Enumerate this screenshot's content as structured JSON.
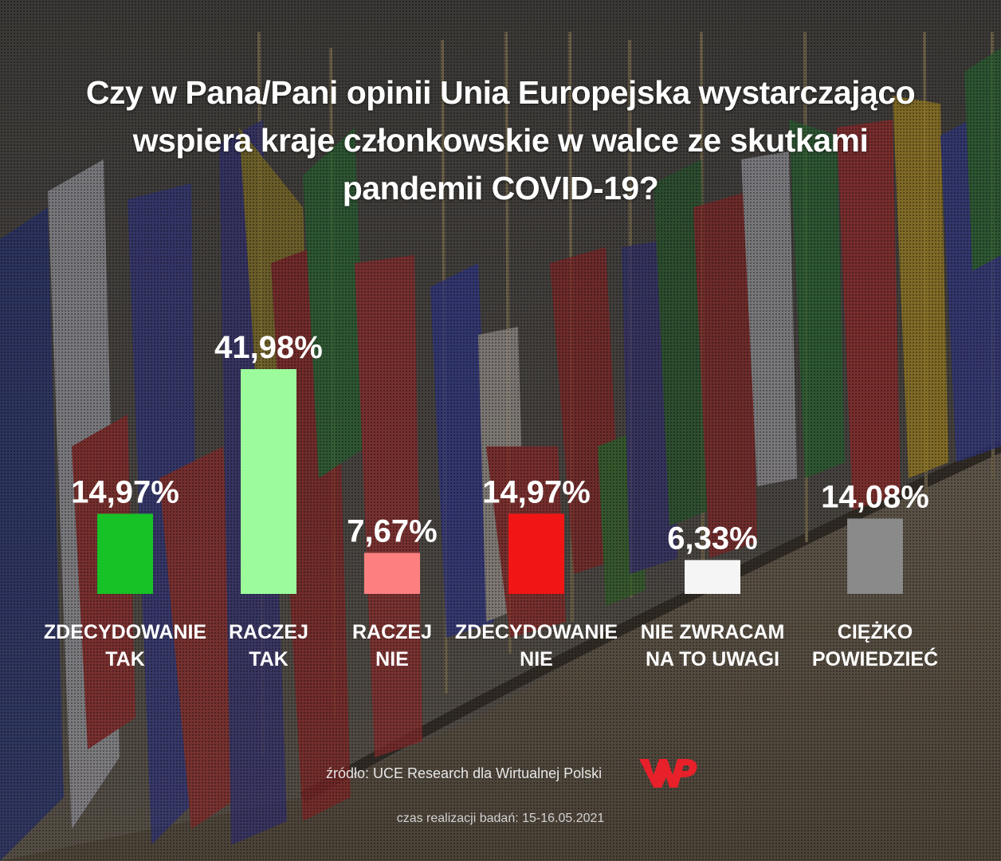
{
  "title_lines": [
    "Czy w Pana/Pani opinii Unia Europejska wystarczająco",
    "wspiera kraje członkowskie w walce ze skutkami",
    "pandemii COVID-19?"
  ],
  "source": "źródło: UCE Research dla Wirtualnej Polski",
  "logo": "WP",
  "date_note": "czas realizacji badań: 15-16.05.2021",
  "colors": {
    "zdecydowanie_tak": "#17c226",
    "raczej_tak": "#9cfc9c",
    "raczej_nie": "#fd7f7f",
    "zdecydowanie_nie": "#f21515",
    "nie_zwracam": "#f5f5f5",
    "ciezko": "#8a8a8a",
    "logo": "#e8202a"
  },
  "chart_data": {
    "type": "bar",
    "categories": [
      [
        "ZDECYDOWANIE",
        "TAK"
      ],
      [
        "RACZEJ",
        "TAK"
      ],
      [
        "RACZEJ",
        "NIE"
      ],
      [
        "ZDECYDOWANIE",
        "NIE"
      ],
      [
        "NIE ZWRACAM",
        "NA TO UWAGI"
      ],
      [
        "CIĘŻKO",
        "POWIEDZIEĆ"
      ]
    ],
    "values": [
      14.97,
      41.98,
      7.67,
      14.97,
      6.33,
      14.08
    ],
    "value_labels": [
      "14,97%",
      "41,98%",
      "7,67%",
      "14,97%",
      "6,33%",
      "14,08%"
    ],
    "colors": [
      "#17c226",
      "#9cfc9c",
      "#fd7f7f",
      "#f21515",
      "#f5f5f5",
      "#8a8a8a"
    ],
    "ylim": [
      0,
      41.98
    ],
    "grid": false,
    "legend": "none"
  }
}
